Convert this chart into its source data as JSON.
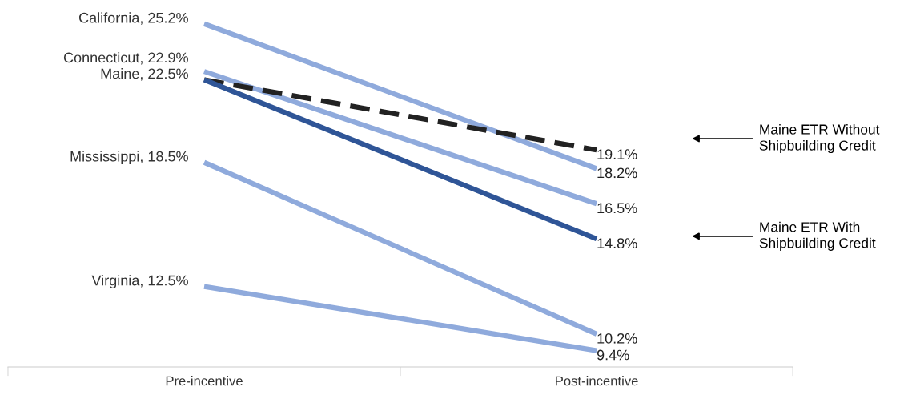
{
  "chart_data": {
    "type": "line",
    "categories": [
      "Pre-incentive",
      "Post-incentive"
    ],
    "series": [
      {
        "color": "#8faadc",
        "values": [
          25.2,
          18.2
        ],
        "value_labels": [
          "California, 25.2%",
          "18.2%"
        ]
      },
      {
        "color": "#8faadc",
        "values": [
          22.9,
          16.5
        ],
        "value_labels": [
          "Connecticut, 22.9%",
          "16.5%"
        ]
      },
      {
        "color": "#8faadc",
        "values": [
          18.5,
          10.2
        ],
        "value_labels": [
          "Mississippi, 18.5%",
          "10.2%"
        ]
      },
      {
        "color": "#8faadc",
        "values": [
          12.5,
          9.4
        ],
        "value_labels": [
          "Virginia, 12.5%",
          "9.4%"
        ]
      },
      {
        "color": "#222222",
        "values": [
          22.5,
          19.1
        ],
        "value_labels": [
          null,
          "19.1%"
        ],
        "line_style": "dashed"
      },
      {
        "color": "#2f5597",
        "values": [
          22.5,
          14.8
        ],
        "value_labels": [
          "Maine, 22.5%",
          "14.8%"
        ]
      }
    ],
    "annotations": [
      "Maine ETR Without\nShipbuilding Credit",
      "Maine ETR With\nShipbuilding Credit"
    ],
    "grid": false,
    "legend": false,
    "tick_labels": "x",
    "marker": "none"
  }
}
